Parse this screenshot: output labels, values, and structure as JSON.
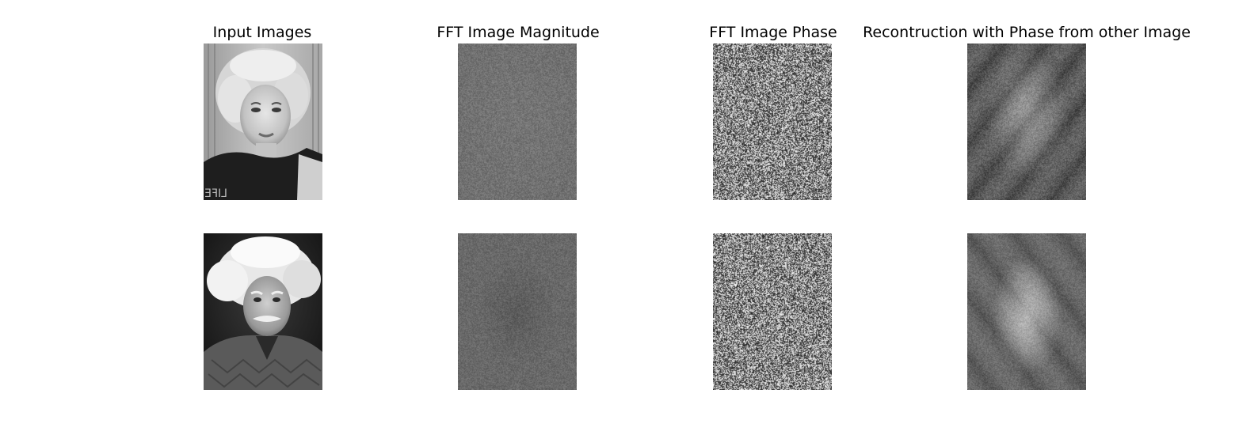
{
  "columns": [
    {
      "title": "Input Images"
    },
    {
      "title": "FFT Image Magnitude"
    },
    {
      "title": "FFT Image Phase"
    },
    {
      "title": "Recontruction with Phase from other Image"
    }
  ],
  "rows": [
    {
      "input": {
        "depicts": "portrait-photo-woman-curly-hair"
      },
      "magnitude": {
        "depicts": "fft-magnitude-gray"
      },
      "phase": {
        "depicts": "fft-phase-noise"
      },
      "reconstruction": {
        "depicts": "ghost-reconstruction-man"
      }
    },
    {
      "input": {
        "depicts": "portrait-photo-man-white-hair"
      },
      "magnitude": {
        "depicts": "fft-magnitude-gray"
      },
      "phase": {
        "depicts": "fft-phase-noise"
      },
      "reconstruction": {
        "depicts": "ghost-reconstruction-woman"
      }
    }
  ]
}
